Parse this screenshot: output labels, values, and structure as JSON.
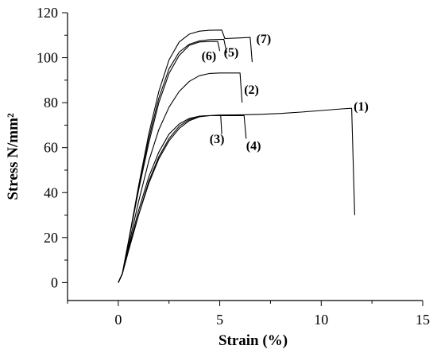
{
  "chart_data": {
    "type": "line",
    "xlabel": "Strain (%)",
    "ylabel": "Stress N/mm²",
    "xlim": [
      -2.5,
      15
    ],
    "ylim": [
      -8,
      120
    ],
    "x_ticks": [
      0,
      5,
      10,
      15
    ],
    "y_ticks": [
      0,
      20,
      40,
      60,
      80,
      100,
      120
    ],
    "x_tick_labels": [
      "0",
      "5",
      "10",
      "15"
    ],
    "y_tick_labels": [
      "0",
      "20",
      "40",
      "60",
      "80",
      "100",
      "120"
    ],
    "grid": false,
    "legend": "none",
    "series": [
      {
        "name": "(1)",
        "points": [
          [
            0,
            0
          ],
          [
            0.2,
            4
          ],
          [
            0.5,
            14
          ],
          [
            1.0,
            30
          ],
          [
            1.5,
            45
          ],
          [
            2.0,
            56
          ],
          [
            2.5,
            64
          ],
          [
            3.0,
            69.5
          ],
          [
            3.5,
            72.5
          ],
          [
            4.0,
            74
          ],
          [
            5.0,
            74.5
          ],
          [
            6.0,
            74.6
          ],
          [
            7.0,
            74.8
          ],
          [
            8.0,
            75.2
          ],
          [
            9.0,
            75.8
          ],
          [
            10.0,
            76.5
          ],
          [
            11.0,
            77.2
          ],
          [
            11.5,
            77.5
          ],
          [
            11.65,
            30
          ]
        ]
      },
      {
        "name": "(2)",
        "points": [
          [
            0,
            0
          ],
          [
            0.2,
            4
          ],
          [
            0.5,
            16
          ],
          [
            1.0,
            36
          ],
          [
            1.5,
            54
          ],
          [
            2.0,
            68
          ],
          [
            2.5,
            78
          ],
          [
            3.0,
            85
          ],
          [
            3.5,
            89.5
          ],
          [
            4.0,
            92
          ],
          [
            4.5,
            93
          ],
          [
            5.0,
            93.2
          ],
          [
            6.0,
            93.2
          ],
          [
            6.1,
            80
          ]
        ]
      },
      {
        "name": "(3)",
        "points": [
          [
            0,
            0
          ],
          [
            0.2,
            4
          ],
          [
            0.5,
            15
          ],
          [
            1.0,
            32
          ],
          [
            1.5,
            47
          ],
          [
            2.0,
            58
          ],
          [
            2.5,
            66
          ],
          [
            3.0,
            70.5
          ],
          [
            3.5,
            73
          ],
          [
            4.0,
            74
          ],
          [
            4.5,
            74.2
          ],
          [
            5.05,
            74.2
          ],
          [
            5.1,
            66
          ]
        ]
      },
      {
        "name": "(4)",
        "points": [
          [
            0,
            0
          ],
          [
            0.2,
            4
          ],
          [
            0.5,
            14
          ],
          [
            1.0,
            30
          ],
          [
            1.5,
            44
          ],
          [
            2.0,
            55
          ],
          [
            2.5,
            63
          ],
          [
            3.0,
            68.5
          ],
          [
            3.5,
            72
          ],
          [
            4.0,
            73.7
          ],
          [
            4.5,
            74.2
          ],
          [
            5.5,
            74.2
          ],
          [
            6.2,
            74.2
          ],
          [
            6.3,
            64
          ]
        ]
      },
      {
        "name": "(5)",
        "points": [
          [
            0,
            0
          ],
          [
            0.2,
            4
          ],
          [
            0.5,
            18
          ],
          [
            1.0,
            42
          ],
          [
            1.5,
            64
          ],
          [
            2.0,
            82
          ],
          [
            2.5,
            95
          ],
          [
            3.0,
            102.5
          ],
          [
            3.5,
            106
          ],
          [
            4.0,
            107.5
          ],
          [
            4.5,
            108
          ],
          [
            5.2,
            108.2
          ],
          [
            5.35,
            102
          ]
        ]
      },
      {
        "name": "(6)",
        "points": [
          [
            0,
            0
          ],
          [
            0.2,
            4
          ],
          [
            0.5,
            18
          ],
          [
            1.0,
            41
          ],
          [
            1.5,
            62
          ],
          [
            2.0,
            80
          ],
          [
            2.5,
            93
          ],
          [
            3.0,
            101
          ],
          [
            3.5,
            105.5
          ],
          [
            4.0,
            107
          ],
          [
            4.5,
            107.2
          ],
          [
            4.9,
            107.2
          ],
          [
            5.0,
            103
          ]
        ]
      },
      {
        "name": "(7)",
        "points": [
          [
            0,
            0
          ],
          [
            0.2,
            4
          ],
          [
            0.5,
            18
          ],
          [
            1.0,
            43
          ],
          [
            1.5,
            66
          ],
          [
            2.0,
            85
          ],
          [
            2.5,
            99
          ],
          [
            3.0,
            107
          ],
          [
            3.5,
            110.5
          ],
          [
            4.0,
            111.8
          ],
          [
            4.5,
            112.2
          ],
          [
            5.1,
            112.3
          ],
          [
            5.25,
            108.5
          ],
          [
            6.0,
            108.8
          ],
          [
            6.5,
            109
          ],
          [
            6.6,
            98
          ]
        ]
      }
    ],
    "curve_labels": [
      {
        "text": "(1)",
        "x": 11.6,
        "y": 76.5
      },
      {
        "text": "(2)",
        "x": 6.2,
        "y": 84
      },
      {
        "text": "(3)",
        "x": 4.5,
        "y": 62
      },
      {
        "text": "(4)",
        "x": 6.3,
        "y": 59
      },
      {
        "text": "(5)",
        "x": 5.2,
        "y": 100.5
      },
      {
        "text": "(6)",
        "x": 4.1,
        "y": 99
      },
      {
        "text": "(7)",
        "x": 6.8,
        "y": 106.5
      }
    ]
  }
}
